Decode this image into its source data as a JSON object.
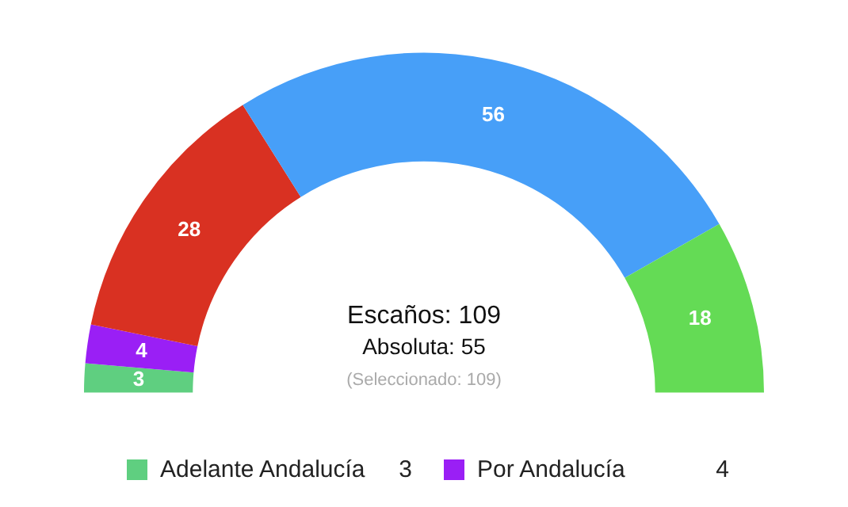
{
  "chart_data": {
    "type": "donut",
    "categories": [
      "Adelante Andalucía",
      "Por Andalucía",
      null,
      null,
      null
    ],
    "values": [
      3,
      4,
      28,
      56,
      18
    ],
    "colors": [
      "#5fcf80",
      "#9a1ff5",
      "#d93122",
      "#479ff8",
      "#64db55"
    ],
    "value_labels": [
      "3",
      "4",
      "28",
      "56",
      "18"
    ],
    "legend": "bottom",
    "annotations": [
      "Escaños: 109",
      "Absoluta: 55",
      "(Seleccionado: 109)"
    ]
  }
}
